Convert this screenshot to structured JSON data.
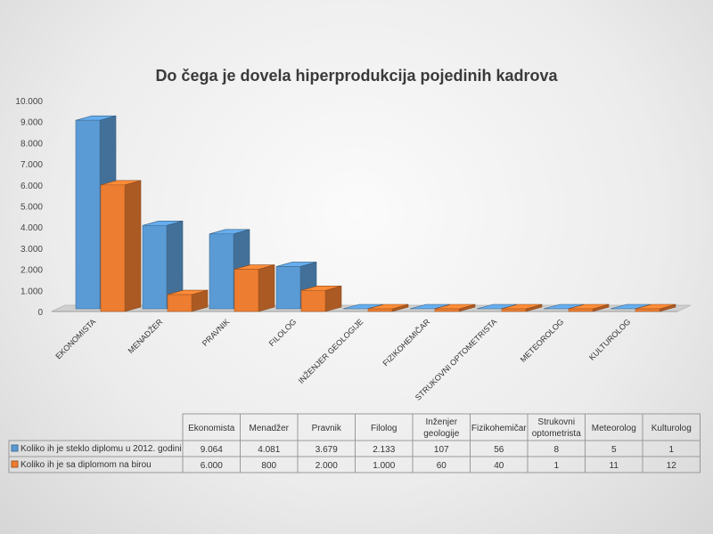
{
  "chart_data": {
    "type": "bar",
    "title": "Do čega je dovela hiperprodukcija pojedinih kadrova",
    "categories": [
      "Ekonomista",
      "Menadžer",
      "Pravnik",
      "Filolog",
      "Inženjer geologije",
      "Fizikohemičar",
      "Strukovni optometrista",
      "Meteorolog",
      "Kulturolog"
    ],
    "table_headers": [
      [
        "Ekonomista"
      ],
      [
        "Menadžer"
      ],
      [
        "Pravnik"
      ],
      [
        "Filolog"
      ],
      [
        "Inženjer",
        "geologije"
      ],
      [
        "Fizikohemičar"
      ],
      [
        "Strukovni",
        "optometrista"
      ],
      [
        "Meteorolog"
      ],
      [
        "Kulturolog"
      ]
    ],
    "axis_labels": [
      "EKONOMISTA",
      "MENADŽER",
      "PRAVNIK",
      "FILOLOG",
      "INŽENJER GEOLOGIJE",
      "FIZIKOHEMIČAR",
      "STRUKOVNI OPTOMETRISTA",
      "METEOROLOG",
      "KULTUROLOG"
    ],
    "series": [
      {
        "name": "Koliko ih je steklo diplomu u 2012. godini",
        "color": "#5b9bd5",
        "values": [
          9064,
          4081,
          3679,
          2133,
          107,
          56,
          8,
          5,
          1
        ],
        "display": [
          "9.064",
          "4.081",
          "3.679",
          "2.133",
          "107",
          "56",
          "8",
          "5",
          "1"
        ]
      },
      {
        "name": "Koliko ih je sa diplomom na birou",
        "color": "#ed7d31",
        "values": [
          6000,
          800,
          2000,
          1000,
          60,
          40,
          1,
          11,
          12
        ],
        "display": [
          "6.000",
          "800",
          "2.000",
          "1.000",
          "60",
          "40",
          "1",
          "11",
          "12"
        ]
      }
    ],
    "yticks": [
      0,
      1000,
      2000,
      3000,
      4000,
      5000,
      6000,
      7000,
      8000,
      9000,
      10000
    ],
    "ytick_labels": [
      "0",
      "1.000",
      "2.000",
      "3.000",
      "4.000",
      "5.000",
      "6.000",
      "7.000",
      "8.000",
      "9.000",
      "10.000"
    ],
    "ylim": [
      0,
      10000
    ],
    "grid": false,
    "legend": "data-table-bottom"
  }
}
